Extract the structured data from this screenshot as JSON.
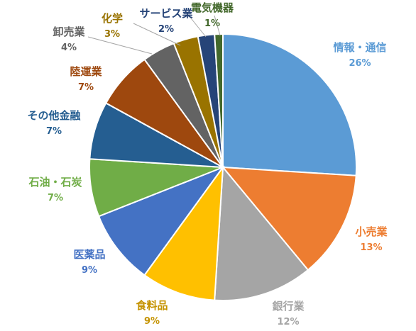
{
  "chart_data": {
    "type": "pie",
    "start_angle_deg": 0,
    "direction": "clockwise",
    "slices": [
      {
        "label": "情報・通信",
        "percent_label": "26%",
        "value": 26,
        "color": "#5B9BD5",
        "label_color": "#5B9BD5"
      },
      {
        "label": "小売業",
        "percent_label": "13%",
        "value": 13,
        "color": "#ED7D31",
        "label_color": "#ED7D31"
      },
      {
        "label": "銀行業",
        "percent_label": "12%",
        "value": 12,
        "color": "#A5A5A5",
        "label_color": "#A5A5A5"
      },
      {
        "label": "食料品",
        "percent_label": "9%",
        "value": 9,
        "color": "#FFC000",
        "label_color": "#C59300"
      },
      {
        "label": "医薬品",
        "percent_label": "9%",
        "value": 9,
        "color": "#4472C4",
        "label_color": "#4472C4"
      },
      {
        "label": "石油・石炭",
        "percent_label": "7%",
        "value": 7,
        "color": "#70AD47",
        "label_color": "#70AD47"
      },
      {
        "label": "その他金融",
        "percent_label": "7%",
        "value": 7,
        "color": "#255E91",
        "label_color": "#255E91"
      },
      {
        "label": "陸運業",
        "percent_label": "7%",
        "value": 7,
        "color": "#9E480E",
        "label_color": "#9E480E"
      },
      {
        "label": "卸売業",
        "percent_label": "4%",
        "value": 4,
        "color": "#636363",
        "label_color": "#636363"
      },
      {
        "label": "化学",
        "percent_label": "3%",
        "value": 3,
        "color": "#997300",
        "label_color": "#997300"
      },
      {
        "label": "サービス業",
        "percent_label": "2%",
        "value": 2,
        "color": "#264478",
        "label_color": "#264478"
      },
      {
        "label": "電気機器",
        "percent_label": "1%",
        "value": 1,
        "color": "#43682B",
        "label_color": "#43682B"
      }
    ]
  }
}
